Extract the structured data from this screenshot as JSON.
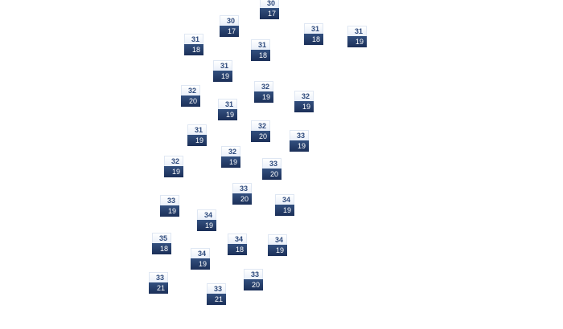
{
  "colors": {
    "high_bg": "#eef3fb",
    "low_bg": "#243d6b",
    "high_text": "#2e4a7c",
    "low_text": "#ffffff"
  },
  "markers": [
    {
      "high": "30",
      "low": "17"
    },
    {
      "high": "30",
      "low": "17"
    },
    {
      "high": "31",
      "low": "18"
    },
    {
      "high": "31",
      "low": "18"
    },
    {
      "high": "31",
      "low": "18"
    },
    {
      "high": "31",
      "low": "19"
    },
    {
      "high": "31",
      "low": "19"
    },
    {
      "high": "32",
      "low": "20"
    },
    {
      "high": "32",
      "low": "19"
    },
    {
      "high": "32",
      "low": "19"
    },
    {
      "high": "31",
      "low": "19"
    },
    {
      "high": "32",
      "low": "20"
    },
    {
      "high": "33",
      "low": "19"
    },
    {
      "high": "31",
      "low": "19"
    },
    {
      "high": "32",
      "low": "19"
    },
    {
      "high": "32",
      "low": "19"
    },
    {
      "high": "33",
      "low": "20"
    },
    {
      "high": "33",
      "low": "20"
    },
    {
      "high": "34",
      "low": "19"
    },
    {
      "high": "33",
      "low": "19"
    },
    {
      "high": "34",
      "low": "19"
    },
    {
      "high": "35",
      "low": "18"
    },
    {
      "high": "34",
      "low": "18"
    },
    {
      "high": "34",
      "low": "19"
    },
    {
      "high": "34",
      "low": "19"
    },
    {
      "high": "33",
      "low": "21"
    },
    {
      "high": "33",
      "low": "20"
    },
    {
      "high": "33",
      "low": "21"
    }
  ]
}
